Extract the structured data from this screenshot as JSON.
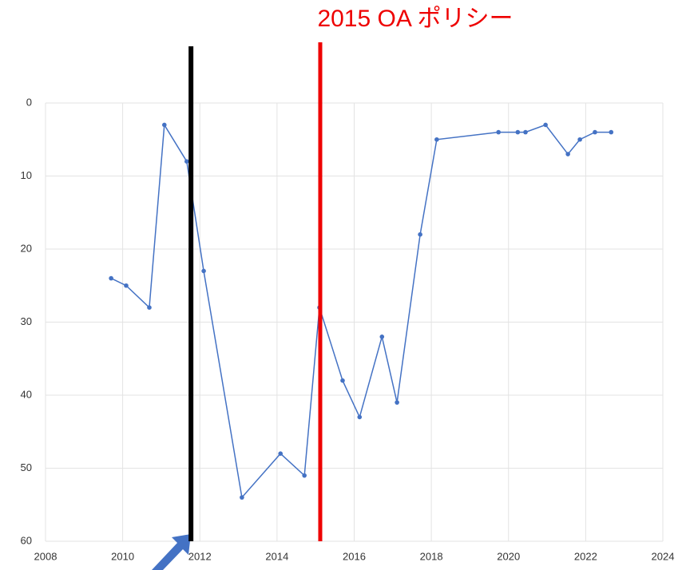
{
  "chart_data": {
    "type": "line",
    "annotation": "2015 OA ポリシー",
    "x": [
      2009.7,
      2010.09,
      2010.69,
      2011.08,
      2011.66,
      2012.1,
      2013.09,
      2014.09,
      2014.71,
      2015.1,
      2015.7,
      2016.14,
      2016.72,
      2017.11,
      2017.71,
      2018.14,
      2019.74,
      2020.24,
      2020.44,
      2020.96,
      2021.54,
      2021.85,
      2022.24,
      2022.66
    ],
    "series": [
      {
        "color": "#4472c4",
        "values": [
          24,
          25,
          28,
          3,
          8,
          23,
          54,
          48,
          51,
          28,
          38,
          43,
          32,
          41,
          18,
          5,
          4,
          4,
          4,
          3,
          7,
          5,
          4,
          4
        ]
      }
    ],
    "xlim": [
      2008,
      2024
    ],
    "xticks": [
      2008,
      2010,
      2012,
      2014,
      2016,
      2018,
      2020,
      2022,
      2024
    ],
    "ylim": [
      0,
      60
    ],
    "yticks": [
      0,
      10,
      20,
      30,
      40,
      50,
      60
    ],
    "y_inverted": true,
    "grid": true,
    "vlines": [
      {
        "x": 2011.77,
        "color": "#000000"
      },
      {
        "x": 2015.12,
        "color": "#ee0000"
      }
    ]
  }
}
